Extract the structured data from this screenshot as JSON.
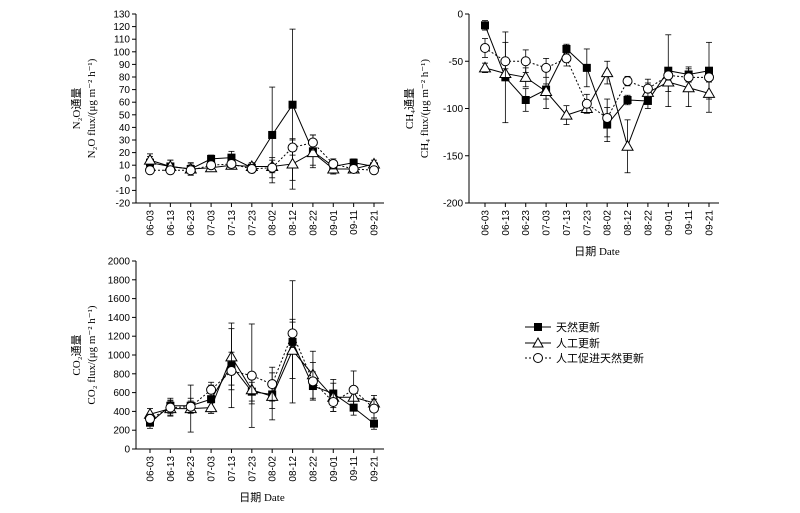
{
  "legend": [
    {
      "name": "天然更新",
      "marker": "square"
    },
    {
      "name": "人工更新",
      "marker": "triangle"
    },
    {
      "name": "人工促进天然更新",
      "marker": "circle"
    }
  ],
  "chart_data": [
    {
      "type": "line",
      "ylabel_line1": "N₂O通量",
      "ylabel_line2": "N₂O flux/(μg m⁻² h⁻¹)",
      "xlabel": "",
      "categories": [
        "06-03",
        "06-13",
        "06-23",
        "07-03",
        "07-13",
        "07-23",
        "08-02",
        "08-12",
        "08-22",
        "09-01",
        "09-11",
        "09-21"
      ],
      "ylim": [
        -20,
        130
      ],
      "yticks": [
        -20,
        -10,
        0,
        10,
        20,
        30,
        40,
        50,
        60,
        70,
        80,
        90,
        100,
        110,
        120,
        130
      ],
      "y_inverted": false,
      "series": [
        {
          "name": "天然更新",
          "values": [
            12,
            9,
            7,
            15,
            16,
            8,
            34,
            58,
            21,
            9,
            12,
            9
          ],
          "errors": [
            5,
            5,
            5,
            3,
            5,
            3,
            38,
            60,
            13,
            4,
            3,
            3
          ]
        },
        {
          "name": "人工更新",
          "values": [
            14,
            9,
            7,
            8,
            10,
            9,
            9,
            11,
            20,
            7,
            7,
            11
          ],
          "errors": [
            5,
            5,
            4,
            3,
            3,
            3,
            5,
            20,
            10,
            4,
            3,
            3
          ]
        },
        {
          "name": "人工促进天然更新",
          "values": [
            6,
            6,
            6,
            10,
            11,
            7,
            8,
            24,
            28,
            11,
            7,
            6
          ],
          "errors": [
            3,
            3,
            3,
            3,
            3,
            3,
            8,
            6,
            6,
            4,
            3,
            3
          ]
        }
      ]
    },
    {
      "type": "line",
      "ylabel_line1": "CH₄通量",
      "ylabel_line2": "CH₄ flux/(μg m⁻² h⁻¹)",
      "xlabel": "日期 Date",
      "categories": [
        "06-03",
        "06-13",
        "06-23",
        "07-03",
        "07-13",
        "07-23",
        "08-02",
        "08-12",
        "08-22",
        "09-01",
        "09-11",
        "09-21"
      ],
      "ylim": [
        -200,
        0
      ],
      "yticks": [
        -200,
        -150,
        -100,
        -50,
        0
      ],
      "y_inverted": true,
      "series": [
        {
          "name": "天然更新",
          "values": [
            -12,
            -67,
            -91,
            -80,
            -37,
            -57,
            -117,
            -91,
            -92,
            -60,
            -64,
            -60
          ],
          "errors": [
            5,
            48,
            12,
            20,
            5,
            20,
            18,
            5,
            8,
            38,
            8,
            30
          ]
        },
        {
          "name": "人工更新",
          "values": [
            -57,
            -63,
            -67,
            -82,
            -107,
            -100,
            -62,
            -140,
            -83,
            -72,
            -78,
            -84
          ],
          "errors": [
            5,
            5,
            10,
            8,
            10,
            5,
            12,
            28,
            10,
            10,
            20,
            20
          ]
        },
        {
          "name": "人工促进天然更新",
          "values": [
            -36,
            -50,
            -50,
            -57,
            -47,
            -95,
            -110,
            -71,
            -79,
            -65,
            -67,
            -67
          ],
          "errors": [
            10,
            20,
            12,
            10,
            8,
            10,
            20,
            5,
            10,
            5,
            5,
            5
          ]
        }
      ]
    },
    {
      "type": "line",
      "ylabel_line1": "CO₂通量",
      "ylabel_line2": "CO₂ flux/(μg m⁻² h⁻¹)",
      "xlabel": "日期 Date",
      "categories": [
        "06-03",
        "06-13",
        "06-23",
        "07-03",
        "07-13",
        "07-23",
        "08-02",
        "08-12",
        "08-22",
        "09-01",
        "09-11",
        "09-21"
      ],
      "ylim": [
        0,
        2000
      ],
      "yticks": [
        0,
        200,
        400,
        600,
        800,
        1000,
        1200,
        1400,
        1600,
        1800,
        2000
      ],
      "y_inverted": false,
      "series": [
        {
          "name": "天然更新",
          "values": [
            280,
            460,
            460,
            530,
            890,
            610,
            580,
            1140,
            670,
            590,
            440,
            270
          ],
          "errors": [
            60,
            80,
            80,
            150,
            450,
            100,
            150,
            650,
            150,
            150,
            80,
            60
          ]
        },
        {
          "name": "人工更新",
          "values": [
            370,
            430,
            430,
            440,
            980,
            630,
            560,
            1050,
            790,
            550,
            550,
            490
          ],
          "errors": [
            60,
            80,
            250,
            60,
            300,
            150,
            250,
            300,
            250,
            150,
            100,
            80
          ]
        },
        {
          "name": "人工促进天然更新",
          "values": [
            320,
            440,
            450,
            630,
            830,
            780,
            690,
            1230,
            720,
            500,
            630,
            430
          ],
          "errors": [
            50,
            80,
            60,
            80,
            200,
            550,
            180,
            150,
            200,
            100,
            200,
            100
          ]
        }
      ]
    }
  ]
}
